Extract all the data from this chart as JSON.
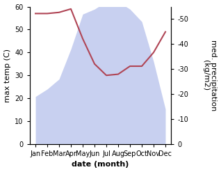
{
  "months": [
    "Jan",
    "Feb",
    "Mar",
    "Apr",
    "May",
    "Jun",
    "Jul",
    "Aug",
    "Sep",
    "Oct",
    "Nov",
    "Dec"
  ],
  "month_positions": [
    0,
    1,
    2,
    3,
    4,
    5,
    6,
    7,
    8,
    9,
    10,
    11
  ],
  "temperature": [
    57,
    57,
    57.5,
    59,
    46,
    35,
    30,
    30.5,
    34,
    34,
    40,
    49
  ],
  "precipitation": [
    19,
    22,
    26,
    38,
    52,
    54,
    57,
    57,
    54,
    49,
    33,
    14
  ],
  "temp_color": "#b04555",
  "precip_fill_color": "#c8d0f0",
  "ylabel_left": "max temp (C)",
  "ylabel_right": "med. precipitation\n(kg/m2)",
  "xlabel": "date (month)",
  "ylim_left": [
    0,
    60
  ],
  "ylim_right": [
    0,
    55
  ],
  "yticks_left": [
    0,
    10,
    20,
    30,
    40,
    50,
    60
  ],
  "yticks_right": [
    0,
    10,
    20,
    30,
    40,
    50
  ],
  "background_color": "#ffffff",
  "tick_label_size": 7,
  "axis_label_size": 8
}
